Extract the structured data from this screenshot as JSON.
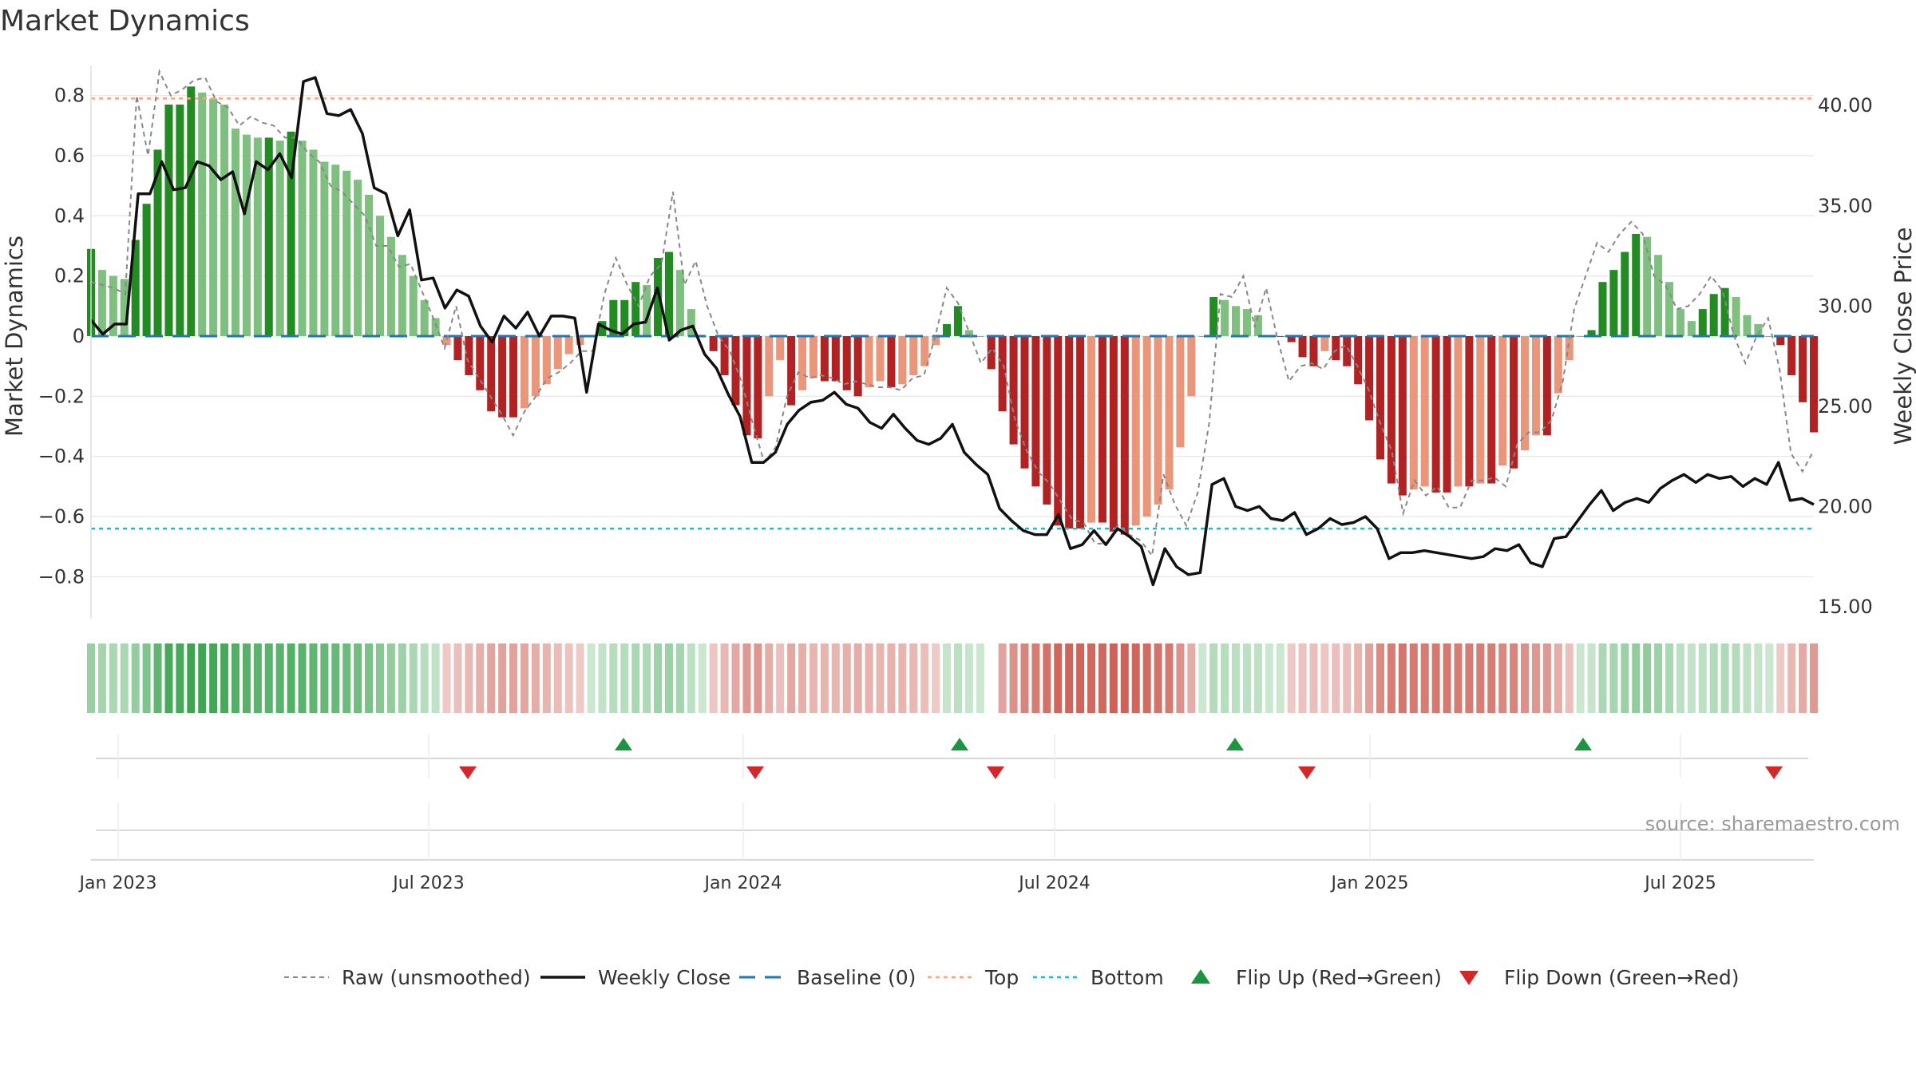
{
  "chart_data": {
    "type": "bar",
    "title": "Market Dynamics",
    "ylabel_left": "Market Dynamics",
    "ylabel_right": "Weekly Close Price",
    "ylim_left": [
      -0.9,
      0.9
    ],
    "ylim_right": [
      15,
      42
    ],
    "left_ticks": [
      "0.8",
      "0.6",
      "0.4",
      "0.2",
      "0",
      "−0.2",
      "−0.4",
      "−0.6",
      "−0.8"
    ],
    "left_tick_values": [
      0.8,
      0.6,
      0.4,
      0.2,
      0,
      -0.2,
      -0.4,
      -0.6,
      -0.8
    ],
    "right_ticks": [
      "40.00",
      "35.00",
      "30.00",
      "25.00",
      "20.00",
      "15.00"
    ],
    "right_tick_values": [
      40,
      35,
      30,
      25,
      20,
      15
    ],
    "x_ticks": [
      "Jan 2023",
      "Jul 2023",
      "Jan 2024",
      "Jul 2024",
      "Jan 2025",
      "Jul 2025"
    ],
    "x_tick_weeks": [
      1,
      37,
      73,
      109,
      146,
      182
    ],
    "top_level": 0.79,
    "bottom_level": -0.64,
    "weeks": 200,
    "smoothed": [
      0.29,
      0.22,
      0.2,
      0.19,
      0.32,
      0.44,
      0.62,
      0.77,
      0.77,
      0.83,
      0.81,
      0.79,
      0.77,
      0.69,
      0.67,
      0.66,
      0.66,
      0.65,
      0.68,
      0.65,
      0.62,
      0.58,
      0.57,
      0.55,
      0.52,
      0.47,
      0.4,
      0.33,
      0.27,
      0.2,
      0.12,
      0.06,
      -0.03,
      -0.08,
      -0.13,
      -0.18,
      -0.25,
      -0.27,
      -0.27,
      -0.24,
      -0.2,
      -0.16,
      -0.11,
      -0.06,
      -0.03,
      0.0,
      0.05,
      0.12,
      0.12,
      0.18,
      0.17,
      0.26,
      0.28,
      0.22,
      0.09,
      0.0,
      -0.05,
      -0.13,
      -0.23,
      -0.33,
      -0.34,
      -0.2,
      -0.08,
      -0.23,
      -0.18,
      -0.14,
      -0.15,
      -0.15,
      -0.18,
      -0.2,
      -0.17,
      -0.15,
      -0.17,
      -0.16,
      -0.13,
      -0.1,
      -0.03,
      0.04,
      0.1,
      0.02,
      0.0,
      -0.11,
      -0.25,
      -0.36,
      -0.44,
      -0.5,
      -0.56,
      -0.63,
      -0.64,
      -0.64,
      -0.62,
      -0.62,
      -0.65,
      -0.66,
      -0.63,
      -0.6,
      -0.56,
      -0.51,
      -0.37,
      -0.2,
      0.0,
      0.13,
      0.12,
      0.1,
      0.09,
      0.07,
      0.0,
      0.0,
      -0.02,
      -0.07,
      -0.1,
      -0.05,
      -0.08,
      -0.1,
      -0.16,
      -0.28,
      -0.41,
      -0.49,
      -0.53,
      -0.51,
      -0.5,
      -0.52,
      -0.52,
      -0.5,
      -0.5,
      -0.49,
      -0.49,
      -0.43,
      -0.44,
      -0.38,
      -0.33,
      -0.33,
      -0.19,
      -0.08,
      0.0,
      0.02,
      0.18,
      0.22,
      0.28,
      0.34,
      0.33,
      0.27,
      0.18,
      0.09,
      0.05,
      0.09,
      0.14,
      0.16,
      0.13,
      0.07,
      0.04,
      0.0,
      -0.03,
      -0.13,
      -0.22,
      -0.32
    ],
    "raw": [
      0.18,
      0.17,
      0.16,
      0.14,
      0.8,
      0.6,
      0.88,
      0.8,
      0.82,
      0.85,
      0.86,
      0.78,
      0.76,
      0.7,
      0.73,
      0.71,
      0.7,
      0.66,
      0.66,
      0.61,
      0.58,
      0.5,
      0.48,
      0.44,
      0.4,
      0.3,
      0.3,
      0.23,
      0.24,
      0.15,
      0.06,
      -0.04,
      0.1,
      -0.08,
      -0.14,
      -0.2,
      -0.26,
      -0.33,
      -0.25,
      -0.2,
      -0.14,
      -0.12,
      -0.09,
      -0.05,
      -0.05,
      0.14,
      0.26,
      0.17,
      0.1,
      0.2,
      0.24,
      0.48,
      0.17,
      0.25,
      0.1,
      0.0,
      -0.05,
      -0.15,
      -0.29,
      -0.42,
      -0.37,
      -0.2,
      -0.12,
      -0.14,
      -0.13,
      -0.14,
      -0.16,
      -0.15,
      -0.16,
      -0.17,
      -0.17,
      -0.18,
      -0.14,
      -0.13,
      0.0,
      0.16,
      0.11,
      0.01,
      -0.09,
      -0.04,
      -0.1,
      -0.28,
      -0.38,
      -0.45,
      -0.49,
      -0.55,
      -0.61,
      -0.62,
      -0.69,
      -0.69,
      -0.63,
      -0.66,
      -0.68,
      -0.73,
      -0.46,
      -0.56,
      -0.63,
      -0.52,
      -0.29,
      0.14,
      0.13,
      0.2,
      0.03,
      0.16,
      -0.01,
      -0.15,
      -0.1,
      -0.09,
      -0.11,
      -0.05,
      -0.03,
      -0.1,
      -0.18,
      -0.29,
      -0.38,
      -0.59,
      -0.48,
      -0.53,
      -0.5,
      -0.57,
      -0.57,
      -0.48,
      -0.48,
      -0.47,
      -0.5,
      -0.36,
      -0.32,
      -0.32,
      -0.28,
      -0.15,
      0.09,
      0.2,
      0.31,
      0.28,
      0.34,
      0.38,
      0.34,
      0.2,
      0.17,
      0.09,
      0.1,
      0.14,
      0.2,
      0.15,
      0.0,
      -0.09,
      0.0,
      0.06,
      -0.11,
      -0.39,
      -0.45,
      -0.38
    ],
    "close": [
      29.3,
      28.6,
      29.1,
      29.1,
      35.6,
      35.6,
      37.2,
      35.8,
      35.9,
      37.2,
      37.0,
      36.3,
      36.7,
      34.6,
      37.2,
      36.8,
      37.6,
      36.4,
      41.2,
      41.4,
      39.6,
      39.5,
      39.8,
      38.6,
      35.9,
      35.6,
      33.5,
      34.8,
      31.3,
      31.4,
      29.9,
      30.8,
      30.5,
      29.0,
      28.2,
      29.5,
      28.9,
      29.7,
      28.5,
      29.5,
      29.5,
      29.4,
      25.7,
      29.1,
      28.8,
      28.6,
      29.1,
      29.2,
      30.9,
      28.3,
      28.8,
      29.0,
      27.6,
      26.9,
      25.6,
      24.5,
      22.2,
      22.2,
      22.7,
      24.1,
      24.8,
      25.2,
      25.3,
      25.7,
      25.1,
      24.9,
      24.2,
      23.9,
      24.6,
      23.9,
      23.3,
      23.1,
      23.4,
      24.1,
      22.7,
      22.1,
      21.6,
      19.9,
      19.3,
      18.8,
      18.6,
      18.6,
      19.6,
      17.9,
      18.1,
      18.8,
      18.1,
      18.9,
      18.5,
      18.0,
      16.1,
      17.9,
      17.0,
      16.6,
      16.7,
      21.1,
      21.4,
      20.0,
      19.8,
      20.0,
      19.4,
      19.3,
      19.7,
      18.6,
      18.9,
      19.4,
      19.1,
      19.2,
      19.5,
      18.9,
      17.4,
      17.7,
      17.7,
      17.8,
      17.7,
      17.6,
      17.5,
      17.4,
      17.5,
      17.9,
      17.8,
      18.1,
      17.2,
      17.0,
      18.4,
      18.5,
      19.3,
      20.1,
      20.8,
      19.8,
      20.2,
      20.4,
      20.2,
      20.9,
      21.3,
      21.6,
      21.2,
      21.6,
      21.4,
      21.5,
      21.0,
      21.4,
      21.1,
      22.2,
      20.3,
      20.4,
      20.1
    ]
  },
  "legend": {
    "raw": "Raw (unsmoothed)",
    "close": "Weekly Close",
    "baseline": "Baseline (0)",
    "top": "Top",
    "bottom": "Bottom",
    "flip_up": "Flip Up (Red→Green)",
    "flip_down": "Flip Down (Green→Red)"
  },
  "flips": {
    "up_weeks": [
      62,
      101,
      133,
      173
    ],
    "down_weeks": [
      44,
      78,
      106,
      142,
      197
    ]
  },
  "source": "source: sharemaestro.com",
  "colors": {
    "strong_green": "#228b22",
    "light_green": "#7fbf7f",
    "strong_red": "#b22222",
    "light_red": "#e9967a",
    "close_line": "#111111",
    "raw_line": "#888888",
    "baseline": "#1f77b4",
    "top_line": "#f4a582",
    "bottom_line": "#17becf",
    "flip_up": "#1a9641",
    "flip_down": "#d62728"
  }
}
